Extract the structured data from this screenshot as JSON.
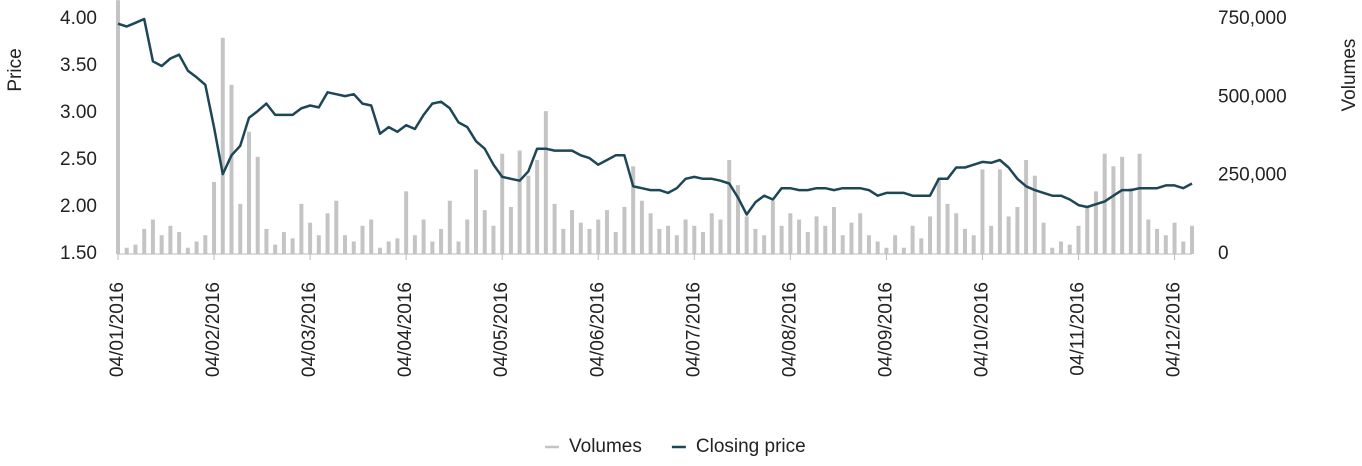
{
  "chart_data": {
    "type": "bar-line",
    "ylabel": "Price",
    "y2label": "Volumes",
    "categories": [
      "04/01/2016",
      null,
      null,
      null,
      null,
      null,
      null,
      null,
      null,
      null,
      null,
      "04/02/2016",
      null,
      null,
      null,
      null,
      null,
      null,
      null,
      null,
      null,
      null,
      "04/03/2016",
      null,
      null,
      null,
      null,
      null,
      null,
      null,
      null,
      null,
      null,
      "04/04/2016",
      null,
      null,
      null,
      null,
      null,
      null,
      null,
      null,
      null,
      null,
      "04/05/2016",
      null,
      null,
      null,
      null,
      null,
      null,
      null,
      null,
      null,
      null,
      "04/06/2016",
      null,
      null,
      null,
      null,
      null,
      null,
      null,
      null,
      null,
      null,
      "04/07/2016",
      null,
      null,
      null,
      null,
      null,
      null,
      null,
      null,
      null,
      null,
      "04/08/2016",
      null,
      null,
      null,
      null,
      null,
      null,
      null,
      null,
      null,
      null,
      "04/09/2016",
      null,
      null,
      null,
      null,
      null,
      null,
      null,
      null,
      null,
      null,
      "04/10/2016",
      null,
      null,
      null,
      null,
      null,
      null,
      null,
      null,
      null,
      null,
      "04/11/2016",
      null,
      null,
      null,
      null,
      null,
      null,
      null,
      null,
      null,
      null,
      "04/12/2016",
      null,
      null
    ],
    "series": [
      {
        "name": "Volumes",
        "color": "#c4c4c4",
        "axis": "y2",
        "values": [
          810000,
          20000,
          30000,
          80000,
          110000,
          60000,
          90000,
          70000,
          20000,
          40000,
          60000,
          230000,
          690000,
          540000,
          160000,
          390000,
          310000,
          80000,
          30000,
          70000,
          50000,
          160000,
          100000,
          60000,
          130000,
          170000,
          60000,
          40000,
          90000,
          110000,
          20000,
          40000,
          50000,
          200000,
          60000,
          110000,
          40000,
          80000,
          170000,
          40000,
          110000,
          270000,
          140000,
          90000,
          320000,
          150000,
          330000,
          250000,
          300000,
          456000,
          160000,
          80000,
          140000,
          100000,
          80000,
          110000,
          140000,
          70000,
          150000,
          280000,
          170000,
          130000,
          80000,
          90000,
          60000,
          110000,
          90000,
          70000,
          130000,
          110000,
          300000,
          220000,
          120000,
          80000,
          60000,
          170000,
          90000,
          130000,
          110000,
          70000,
          120000,
          90000,
          150000,
          60000,
          100000,
          130000,
          60000,
          40000,
          20000,
          60000,
          20000,
          90000,
          50000,
          120000,
          240000,
          160000,
          130000,
          80000,
          60000,
          270000,
          90000,
          270000,
          120000,
          150000,
          300000,
          250000,
          100000,
          20000,
          40000,
          30000,
          90000,
          150000,
          200000,
          320000,
          280000,
          310000,
          210000,
          320000,
          110000,
          80000,
          60000,
          100000,
          40000,
          90000
        ]
      },
      {
        "name": "Closing price",
        "color": "#1d4656",
        "values": [
          3.95,
          3.92,
          3.96,
          4.0,
          3.55,
          3.5,
          3.58,
          3.62,
          3.45,
          3.38,
          3.3,
          2.85,
          2.35,
          2.55,
          2.65,
          2.95,
          3.02,
          3.1,
          2.98,
          2.98,
          2.98,
          3.05,
          3.08,
          3.06,
          3.22,
          3.2,
          3.18,
          3.2,
          3.1,
          3.08,
          2.78,
          2.85,
          2.8,
          2.87,
          2.83,
          2.98,
          3.1,
          3.12,
          3.05,
          2.9,
          2.85,
          2.7,
          2.62,
          2.45,
          2.32,
          2.3,
          2.28,
          2.38,
          2.62,
          2.62,
          2.6,
          2.6,
          2.6,
          2.55,
          2.52,
          2.45,
          2.5,
          2.55,
          2.55,
          2.22,
          2.2,
          2.18,
          2.18,
          2.15,
          2.2,
          2.3,
          2.32,
          2.3,
          2.3,
          2.28,
          2.25,
          2.1,
          1.92,
          2.05,
          2.12,
          2.08,
          2.2,
          2.2,
          2.18,
          2.18,
          2.2,
          2.2,
          2.18,
          2.2,
          2.2,
          2.2,
          2.18,
          2.12,
          2.15,
          2.15,
          2.15,
          2.12,
          2.12,
          2.12,
          2.3,
          2.3,
          2.42,
          2.42,
          2.45,
          2.48,
          2.47,
          2.5,
          2.42,
          2.3,
          2.22,
          2.18,
          2.15,
          2.12,
          2.12,
          2.08,
          2.02,
          2.0,
          2.03,
          2.06,
          2.12,
          2.18,
          2.18,
          2.2,
          2.2,
          2.2,
          2.23,
          2.23,
          2.2,
          2.25
        ]
      }
    ],
    "ylim": [
      1.5,
      4.0
    ],
    "yticks": [
      {
        "value": 1.5,
        "label": "1.50"
      },
      {
        "value": 2,
        "label": "2.00"
      },
      {
        "value": 2.5,
        "label": "2.50"
      },
      {
        "value": 3,
        "label": "3.00"
      },
      {
        "value": 3.5,
        "label": "3.50"
      },
      {
        "value": 4,
        "label": "4.00"
      }
    ],
    "y2lim": [
      0,
      750000
    ],
    "y2ticks": [
      0,
      {
        "value": 250000,
        "label": "250,000"
      },
      {
        "value": 500000,
        "label": "500,000"
      },
      {
        "value": 750000,
        "label": "750,000"
      }
    ],
    "legend": "bottom"
  }
}
